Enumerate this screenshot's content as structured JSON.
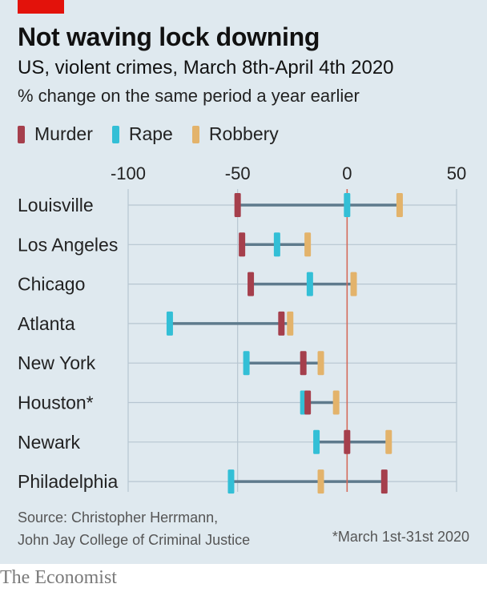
{
  "header": {
    "title": "Not waving lock downing",
    "subtitle": "US, violent crimes, March 8th-April 4th 2020",
    "unit_note": "% change on the same period a year earlier"
  },
  "footer": {
    "source_line1": "Source: Christopher Herrmann,",
    "source_line2": "John Jay College of Criminal Justice",
    "footnote": "*March 1st-31st 2020",
    "brand": "The Economist"
  },
  "colors": {
    "brand_red": "#e3120b",
    "murder": "#a53f4c",
    "rape": "#33bfd6",
    "robbery": "#e3b36b",
    "range_line": "#5e7a8c",
    "zero_line": "#d46a5a",
    "grid": "#b7c6d1"
  },
  "chart_data": {
    "type": "dot-range",
    "xlim": [
      -100,
      50
    ],
    "xticks": [
      -100,
      -50,
      0,
      50
    ],
    "grid": true,
    "legend_position": "top-left",
    "series_order": [
      "Murder",
      "Rape",
      "Robbery"
    ],
    "categories": [
      "Louisville",
      "Los Angeles",
      "Chicago",
      "Atlanta",
      "New York",
      "Houston*",
      "Newark",
      "Philadelphia"
    ],
    "series": [
      {
        "name": "Murder",
        "values": [
          -50,
          -48,
          -44,
          -30,
          -20,
          -18,
          0,
          17
        ]
      },
      {
        "name": "Rape",
        "values": [
          0,
          -32,
          -17,
          -81,
          -46,
          -20,
          -14,
          -53
        ]
      },
      {
        "name": "Robbery",
        "values": [
          24,
          -18,
          3,
          -26,
          -12,
          -5,
          19,
          -12
        ]
      }
    ]
  }
}
